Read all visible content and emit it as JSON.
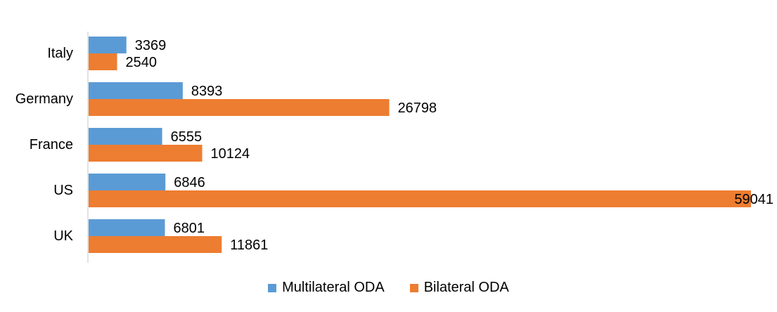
{
  "chart_data": {
    "type": "bar",
    "orientation": "horizontal",
    "categories": [
      "Italy",
      "Germany",
      "France",
      "US",
      "UK"
    ],
    "series": [
      {
        "name": "Multilateral ODA",
        "color": "#5b9bd5",
        "values": [
          3369,
          8393,
          6555,
          6846,
          6801
        ]
      },
      {
        "name": "Bilateral ODA",
        "color": "#ed7d31",
        "values": [
          2540,
          26798,
          10124,
          59041,
          11861
        ]
      }
    ],
    "xlim": [
      0,
      59041
    ],
    "grid": false,
    "legend_position": "bottom",
    "title": "",
    "xlabel": "",
    "ylabel": ""
  }
}
